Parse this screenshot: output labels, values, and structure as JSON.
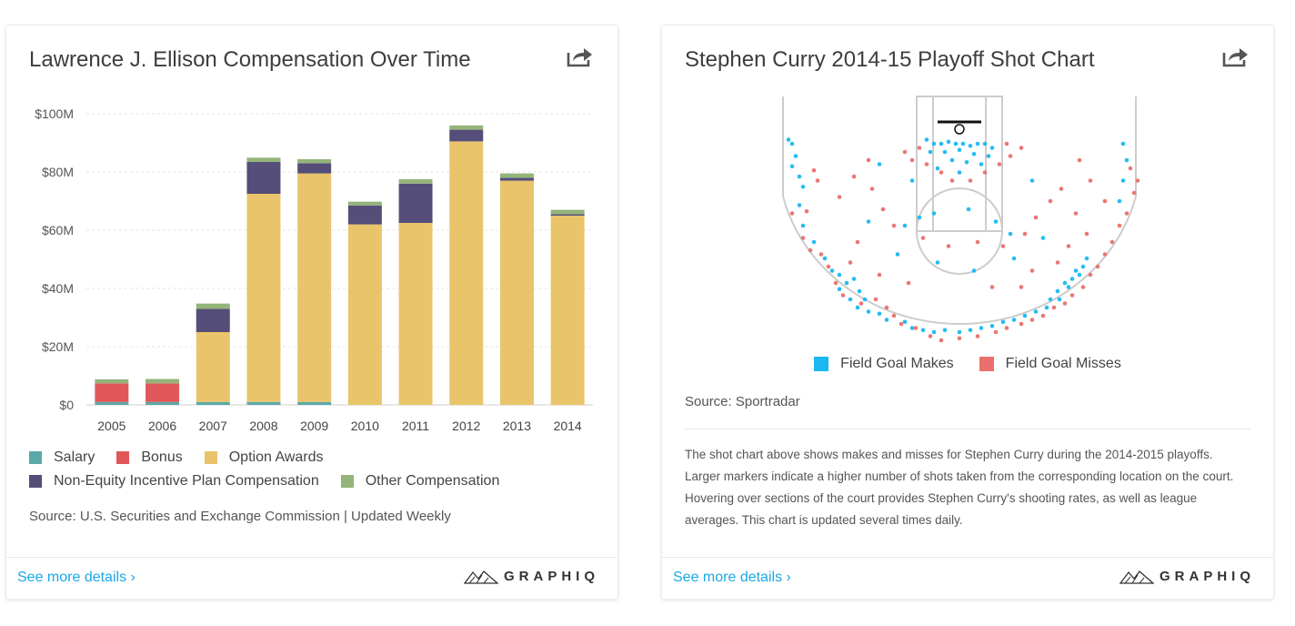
{
  "left_card": {
    "title": "Lawrence J. Ellison Compensation Over Time",
    "source": "Source: U.S. Securities and Exchange Commission | Updated Weekly",
    "details_link": "See more details ›",
    "brand": "GRAPHIQ",
    "legend": [
      {
        "label": "Salary",
        "color": "#5aa9a8"
      },
      {
        "label": "Bonus",
        "color": "#e15759"
      },
      {
        "label": "Option Awards",
        "color": "#e9c46a"
      },
      {
        "label": "Non-Equity Incentive Plan Compensation",
        "color": "#544e78"
      },
      {
        "label": "Other Compensation",
        "color": "#94b47a"
      }
    ]
  },
  "right_card": {
    "title": "Stephen Curry 2014-15 Playoff Shot Chart",
    "source": "Source: Sportradar",
    "description": "The shot chart above shows makes and misses for Stephen Curry during the 2014-2015 playoffs. Larger markers indicate a higher number of shots taken from the corresponding location on the court. Hovering over sections of the court provides Stephen Curry's shooting rates, as well as league averages. This chart is updated several times daily.",
    "details_link": "See more details ›",
    "brand": "GRAPHIQ",
    "legend": [
      {
        "label": "Field Goal Makes",
        "color": "#1ab8f0"
      },
      {
        "label": "Field Goal Misses",
        "color": "#e9706e"
      }
    ]
  },
  "chart_data": [
    {
      "type": "bar",
      "stacked": true,
      "title": "Lawrence J. Ellison Compensation Over Time",
      "categories": [
        "2005",
        "2006",
        "2007",
        "2008",
        "2009",
        "2010",
        "2011",
        "2012",
        "2013",
        "2014"
      ],
      "ylim": [
        0,
        100
      ],
      "yticks": [
        "$0",
        "$20M",
        "$40M",
        "$60M",
        "$80M",
        "$100M"
      ],
      "ytick_values": [
        0,
        20,
        40,
        60,
        80,
        100
      ],
      "grid": true,
      "series": [
        {
          "name": "Salary",
          "color": "#5aa9a8",
          "values": [
            1.0,
            1.0,
            1.0,
            1.0,
            1.0,
            0.0,
            0.0,
            0.0,
            0.0,
            0.0
          ]
        },
        {
          "name": "Bonus",
          "color": "#e15759",
          "values": [
            6.4,
            6.4,
            0.0,
            0.0,
            0.0,
            0.0,
            0.0,
            0.0,
            0.0,
            0.0
          ]
        },
        {
          "name": "Option Awards",
          "color": "#e9c46a",
          "values": [
            0.0,
            0.0,
            24.0,
            71.5,
            78.5,
            62.0,
            62.5,
            90.5,
            77.0,
            65.0
          ]
        },
        {
          "name": "Non-Equity Incentive Plan Compensation",
          "color": "#544e78",
          "values": [
            0.0,
            0.0,
            8.0,
            11.0,
            3.5,
            6.5,
            13.5,
            4.0,
            1.0,
            0.5
          ]
        },
        {
          "name": "Other Compensation",
          "color": "#94b47a",
          "values": [
            1.4,
            1.5,
            1.8,
            1.4,
            1.4,
            1.3,
            1.5,
            1.5,
            1.5,
            1.5
          ]
        }
      ]
    },
    {
      "type": "scatter",
      "title": "Stephen Curry 2014-15 Playoff Shot Chart",
      "x_unit": "court half-width fraction (-1 left sideline, 1 right sideline)",
      "y_unit": "fraction of chart height below the baseline",
      "series": [
        {
          "name": "Field Goal Makes",
          "color": "#1ab8f0",
          "points": [
            [
              -0.94,
              0.1
            ],
            [
              -0.92,
              0.12
            ],
            [
              -0.9,
              0.18
            ],
            [
              -0.92,
              0.23
            ],
            [
              -0.88,
              0.28
            ],
            [
              -0.86,
              0.33
            ],
            [
              -0.88,
              0.42
            ],
            [
              -0.86,
              0.52
            ],
            [
              -0.8,
              0.6
            ],
            [
              -0.74,
              0.68
            ],
            [
              -0.7,
              0.74
            ],
            [
              -0.66,
              0.76
            ],
            [
              -0.62,
              0.8
            ],
            [
              -0.66,
              0.83
            ],
            [
              -0.58,
              0.78
            ],
            [
              -0.55,
              0.84
            ],
            [
              -0.52,
              0.88
            ],
            [
              -0.6,
              0.88
            ],
            [
              -0.56,
              0.92
            ],
            [
              -0.5,
              0.94
            ],
            [
              -0.44,
              0.95
            ],
            [
              -0.4,
              0.98
            ],
            [
              -0.3,
              0.99
            ],
            [
              -0.26,
              1.02
            ],
            [
              -0.2,
              1.03
            ],
            [
              -0.14,
              1.04
            ],
            [
              -0.08,
              1.03
            ],
            [
              0.0,
              1.04
            ],
            [
              0.06,
              1.03
            ],
            [
              0.12,
              1.02
            ],
            [
              0.18,
              1.01
            ],
            [
              0.24,
              0.99
            ],
            [
              0.3,
              0.98
            ],
            [
              0.36,
              0.96
            ],
            [
              0.42,
              0.94
            ],
            [
              0.48,
              0.92
            ],
            [
              0.5,
              0.88
            ],
            [
              0.54,
              0.84
            ],
            [
              0.58,
              0.8
            ],
            [
              0.62,
              0.78
            ],
            [
              0.64,
              0.74
            ],
            [
              0.68,
              0.72
            ],
            [
              0.7,
              0.68
            ],
            [
              0.66,
              0.76
            ],
            [
              0.6,
              0.82
            ],
            [
              0.55,
              0.88
            ],
            [
              -0.18,
              0.1
            ],
            [
              -0.14,
              0.12
            ],
            [
              -0.1,
              0.12
            ],
            [
              -0.06,
              0.11
            ],
            [
              -0.02,
              0.12
            ],
            [
              0.02,
              0.12
            ],
            [
              0.06,
              0.13
            ],
            [
              0.1,
              0.12
            ],
            [
              0.14,
              0.12
            ],
            [
              0.18,
              0.14
            ],
            [
              -0.16,
              0.16
            ],
            [
              -0.08,
              0.16
            ],
            [
              0.0,
              0.15
            ],
            [
              0.08,
              0.17
            ],
            [
              0.16,
              0.18
            ],
            [
              -0.04,
              0.2
            ],
            [
              0.04,
              0.21
            ],
            [
              0.12,
              0.22
            ],
            [
              -0.12,
              0.24
            ],
            [
              0.0,
              0.26
            ],
            [
              -0.3,
              0.52
            ],
            [
              -0.22,
              0.48
            ],
            [
              -0.14,
              0.46
            ],
            [
              0.05,
              0.44
            ],
            [
              0.2,
              0.5
            ],
            [
              0.28,
              0.56
            ],
            [
              -0.34,
              0.66
            ],
            [
              -0.12,
              0.7
            ],
            [
              0.08,
              0.74
            ],
            [
              0.3,
              0.68
            ],
            [
              -0.5,
              0.5
            ],
            [
              0.46,
              0.58
            ],
            [
              0.9,
              0.12
            ],
            [
              0.92,
              0.2
            ],
            [
              0.9,
              0.3
            ],
            [
              0.88,
              0.4
            ],
            [
              -0.44,
              0.22
            ],
            [
              -0.26,
              0.3
            ],
            [
              0.4,
              0.3
            ]
          ]
        },
        {
          "name": "Field Goal Misses",
          "color": "#e9706e",
          "points": [
            [
              -0.8,
              0.25
            ],
            [
              -0.78,
              0.3
            ],
            [
              -0.84,
              0.45
            ],
            [
              -0.92,
              0.46
            ],
            [
              -0.86,
              0.58
            ],
            [
              -0.82,
              0.64
            ],
            [
              -0.76,
              0.66
            ],
            [
              -0.72,
              0.72
            ],
            [
              -0.68,
              0.8
            ],
            [
              -0.64,
              0.86
            ],
            [
              -0.54,
              0.9
            ],
            [
              -0.46,
              0.88
            ],
            [
              -0.4,
              0.92
            ],
            [
              -0.36,
              0.96
            ],
            [
              -0.32,
              1.0
            ],
            [
              -0.24,
              1.02
            ],
            [
              -0.16,
              1.06
            ],
            [
              -0.1,
              1.08
            ],
            [
              0.0,
              1.07
            ],
            [
              0.1,
              1.06
            ],
            [
              0.2,
              1.04
            ],
            [
              0.26,
              1.02
            ],
            [
              0.34,
              1.0
            ],
            [
              0.4,
              0.98
            ],
            [
              0.46,
              0.96
            ],
            [
              0.52,
              0.92
            ],
            [
              0.58,
              0.9
            ],
            [
              0.62,
              0.86
            ],
            [
              0.68,
              0.82
            ],
            [
              0.72,
              0.76
            ],
            [
              0.76,
              0.72
            ],
            [
              0.8,
              0.66
            ],
            [
              0.84,
              0.6
            ],
            [
              0.88,
              0.52
            ],
            [
              0.92,
              0.46
            ],
            [
              0.96,
              0.36
            ],
            [
              0.98,
              0.3
            ],
            [
              0.94,
              0.24
            ],
            [
              -0.3,
              0.16
            ],
            [
              -0.26,
              0.2
            ],
            [
              -0.18,
              0.22
            ],
            [
              -0.1,
              0.26
            ],
            [
              -0.04,
              0.3
            ],
            [
              0.06,
              0.3
            ],
            [
              0.14,
              0.26
            ],
            [
              0.22,
              0.22
            ],
            [
              0.28,
              0.18
            ],
            [
              0.34,
              0.14
            ],
            [
              0.26,
              0.12
            ],
            [
              -0.22,
              0.14
            ],
            [
              -0.48,
              0.34
            ],
            [
              -0.42,
              0.44
            ],
            [
              -0.36,
              0.52
            ],
            [
              -0.2,
              0.58
            ],
            [
              -0.06,
              0.62
            ],
            [
              0.1,
              0.6
            ],
            [
              0.24,
              0.62
            ],
            [
              0.36,
              0.56
            ],
            [
              0.42,
              0.48
            ],
            [
              0.5,
              0.4
            ],
            [
              0.56,
              0.34
            ],
            [
              0.64,
              0.46
            ],
            [
              0.7,
              0.56
            ],
            [
              0.6,
              0.62
            ],
            [
              0.54,
              0.7
            ],
            [
              0.4,
              0.74
            ],
            [
              -0.56,
              0.6
            ],
            [
              -0.6,
              0.7
            ],
            [
              -0.44,
              0.76
            ],
            [
              -0.28,
              0.8
            ],
            [
              0.18,
              0.82
            ],
            [
              0.34,
              0.82
            ],
            [
              0.72,
              0.3
            ],
            [
              0.66,
              0.2
            ],
            [
              0.8,
              0.4
            ],
            [
              -0.66,
              0.38
            ],
            [
              -0.58,
              0.28
            ],
            [
              -0.5,
              0.2
            ]
          ]
        }
      ]
    }
  ]
}
